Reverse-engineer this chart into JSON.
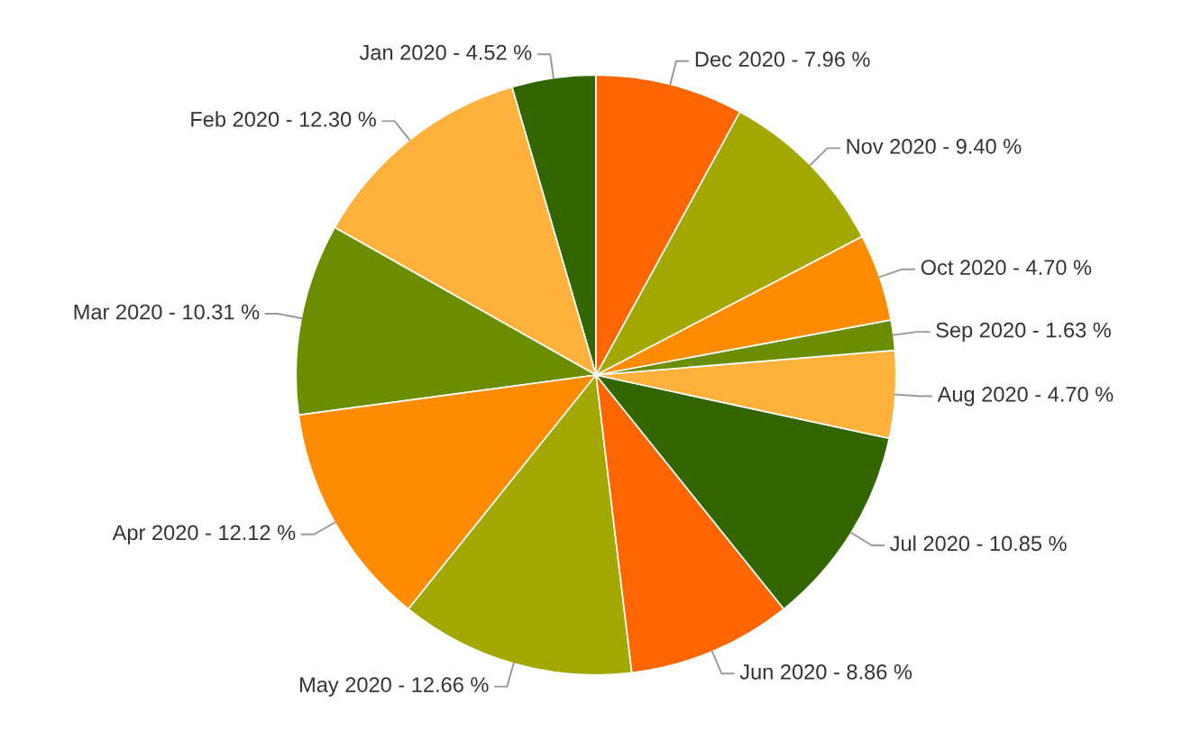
{
  "chart_data": {
    "type": "pie",
    "categories": [
      "Jan 2020",
      "Feb 2020",
      "Mar 2020",
      "Apr 2020",
      "May 2020",
      "Jun 2020",
      "Jul 2020",
      "Aug 2020",
      "Sep 2020",
      "Oct 2020",
      "Nov 2020",
      "Dec 2020"
    ],
    "values": [
      4.52,
      12.3,
      10.31,
      12.12,
      12.66,
      8.86,
      10.85,
      4.7,
      1.63,
      4.7,
      9.4,
      7.96
    ],
    "value_labels": [
      "4.52 %",
      "12.30 %",
      "10.31 %",
      "12.12 %",
      "12.66 %",
      "8.86 %",
      "10.85 %",
      "4.70 %",
      "1.63 %",
      "4.70 %",
      "9.40 %",
      "7.96 %"
    ],
    "colors": [
      "#336600",
      "#ffb13d",
      "#6b8e00",
      "#ff8c00",
      "#a3a800",
      "#ff6600",
      "#336600",
      "#ffb13d",
      "#6b8e00",
      "#ff8c00",
      "#a3a800",
      "#ff6600"
    ],
    "legend": false
  }
}
